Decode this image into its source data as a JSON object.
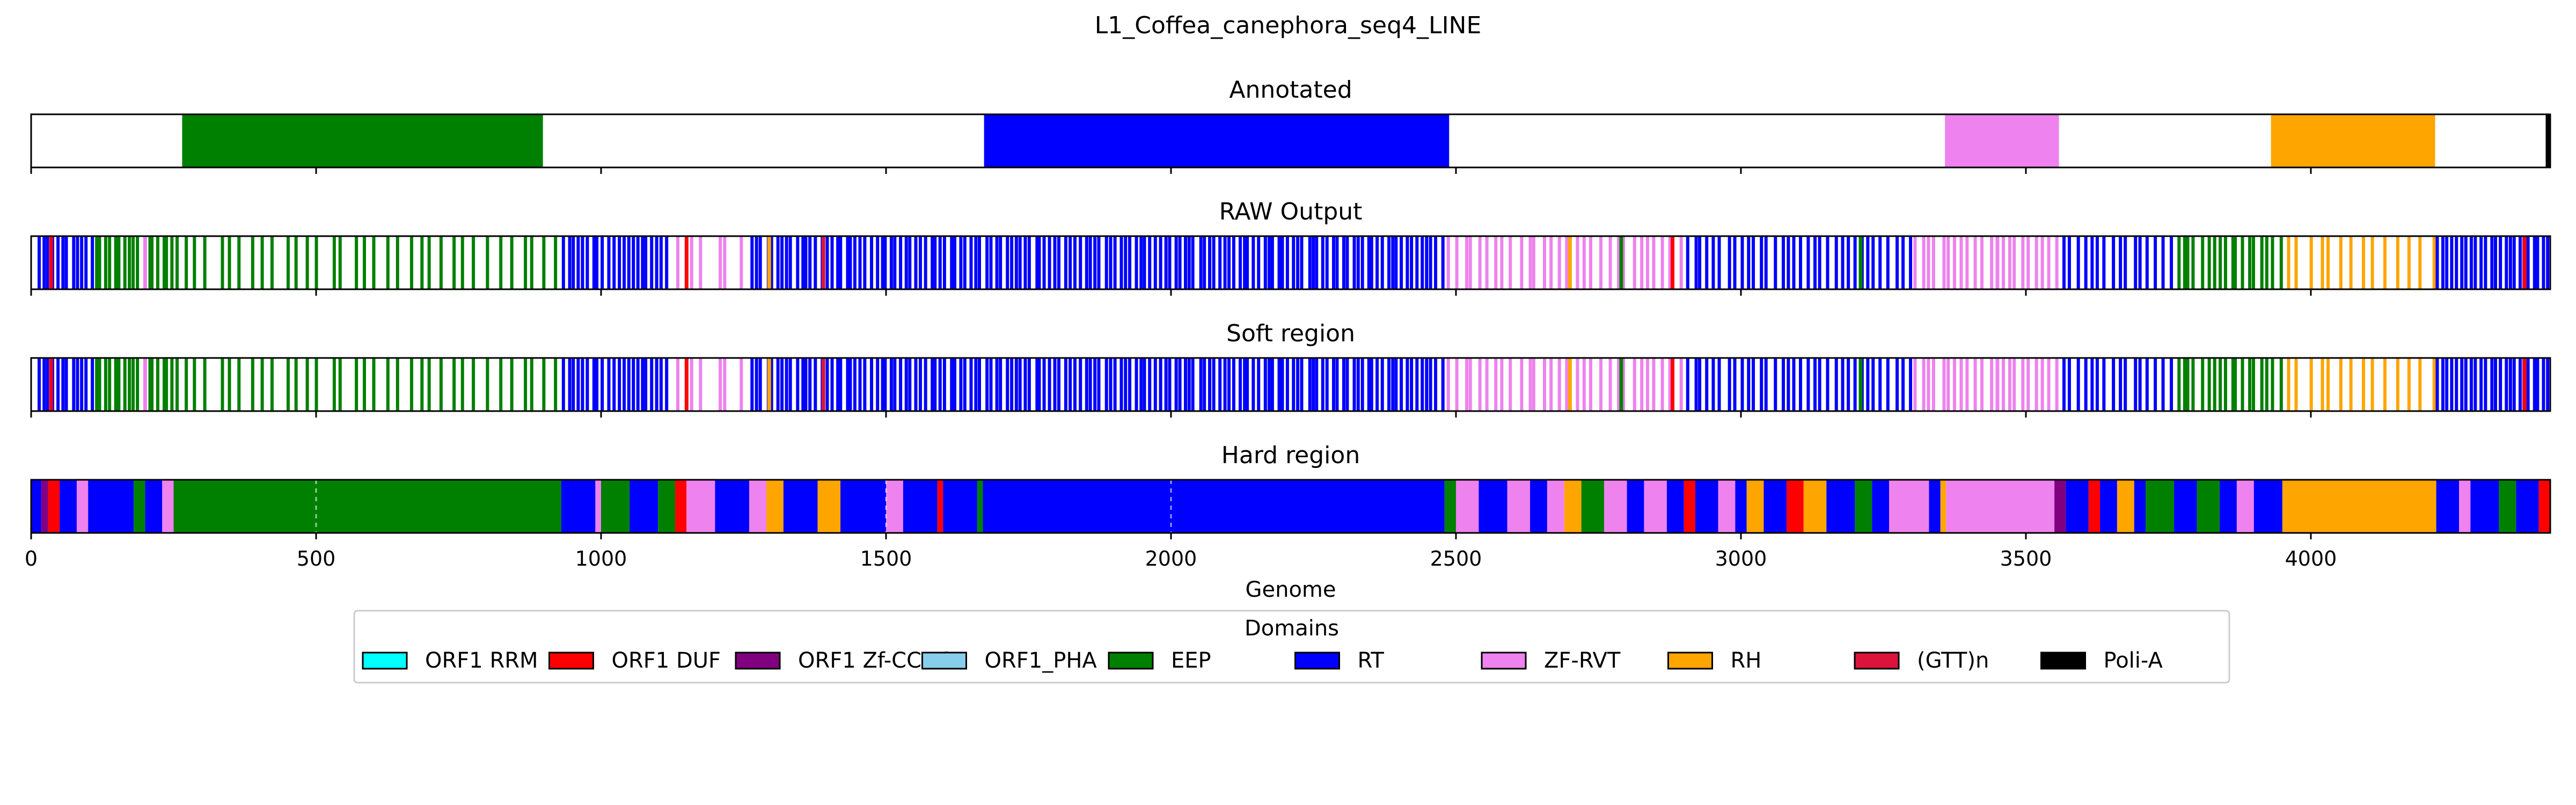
{
  "chart_data": {
    "type": "bar",
    "title": "L1_Coffea_canephora_seq4_LINE",
    "xlabel": "Genome",
    "xlim": [
      0,
      4420
    ],
    "xticks": [
      0,
      500,
      1000,
      1500,
      2000,
      2500,
      3000,
      3500,
      4000
    ],
    "colors": {
      "ORF1 RRM": "#00ffff",
      "ORF1 DUF": "#ff0000",
      "ORF1 Zf-CCHC": "#800080",
      "ORF1_PHA": "#87ceeb",
      "EEP": "#008000",
      "RT": "#0000ff",
      "ZF-RVT": "#ee82ee",
      "RH": "#ffa500",
      "(GTT)n": "#dc143c",
      "Poli-A": "#000000"
    },
    "legend": {
      "title": "Domains",
      "placement": "bottom-center",
      "items": [
        "ORF1 RRM",
        "ORF1 DUF",
        "ORF1 Zf-CCHC",
        "ORF1_PHA",
        "EEP",
        "RT",
        "ZF-RVT",
        "RH",
        "(GTT)n",
        "Poli-A"
      ]
    },
    "panels": [
      {
        "title": "Annotated",
        "style": "blocks",
        "segments": [
          {
            "start": 265,
            "end": 898,
            "domain": "EEP"
          },
          {
            "start": 1672,
            "end": 2488,
            "domain": "RT"
          },
          {
            "start": 3358,
            "end": 3558,
            "domain": "ZF-RVT"
          },
          {
            "start": 3930,
            "end": 4218,
            "domain": "RH"
          },
          {
            "start": 4412,
            "end": 4420,
            "domain": "Poli-A"
          }
        ]
      },
      {
        "title": "RAW Output",
        "style": "lines",
        "segments": [
          {
            "start": 10,
            "end": 110,
            "domain": "RT",
            "n": 12
          },
          {
            "start": 110,
            "end": 260,
            "domain": "EEP",
            "n": 18
          },
          {
            "start": 260,
            "end": 930,
            "domain": "EEP",
            "n": 34
          },
          {
            "start": 930,
            "end": 1120,
            "domain": "RT",
            "n": 22
          },
          {
            "start": 1120,
            "end": 1260,
            "domain": "ZF-RVT",
            "n": 6
          },
          {
            "start": 1260,
            "end": 1680,
            "domain": "RT",
            "n": 48
          },
          {
            "start": 1680,
            "end": 2480,
            "domain": "RT",
            "n": 92
          },
          {
            "start": 2480,
            "end": 2900,
            "domain": "ZF-RVT",
            "n": 30
          },
          {
            "start": 2900,
            "end": 3300,
            "domain": "RT",
            "n": 34
          },
          {
            "start": 3300,
            "end": 3560,
            "domain": "ZF-RVT",
            "n": 22
          },
          {
            "start": 3560,
            "end": 3760,
            "domain": "RT",
            "n": 16
          },
          {
            "start": 3760,
            "end": 3950,
            "domain": "EEP",
            "n": 18
          },
          {
            "start": 3950,
            "end": 4220,
            "domain": "RH",
            "n": 14
          },
          {
            "start": 4220,
            "end": 4420,
            "domain": "RT",
            "n": 24
          }
        ],
        "accents": [
          {
            "pos": 35,
            "domain": "ORF1 DUF"
          },
          {
            "pos": 200,
            "domain": "ZF-RVT"
          },
          {
            "pos": 1150,
            "domain": "ORF1 DUF"
          },
          {
            "pos": 1295,
            "domain": "RH"
          },
          {
            "pos": 1390,
            "domain": "(GTT)n"
          },
          {
            "pos": 2700,
            "domain": "RH"
          },
          {
            "pos": 2790,
            "domain": "EEP"
          },
          {
            "pos": 2880,
            "domain": "ORF1 DUF"
          },
          {
            "pos": 3210,
            "domain": "EEP"
          },
          {
            "pos": 3450,
            "domain": "ZF-RVT"
          },
          {
            "pos": 4375,
            "domain": "ORF1 DUF"
          }
        ]
      },
      {
        "title": "Soft region",
        "style": "lines",
        "segments": [
          {
            "start": 10,
            "end": 110,
            "domain": "RT",
            "n": 12
          },
          {
            "start": 110,
            "end": 260,
            "domain": "EEP",
            "n": 18
          },
          {
            "start": 260,
            "end": 930,
            "domain": "EEP",
            "n": 34
          },
          {
            "start": 930,
            "end": 1120,
            "domain": "RT",
            "n": 22
          },
          {
            "start": 1120,
            "end": 1260,
            "domain": "ZF-RVT",
            "n": 6
          },
          {
            "start": 1260,
            "end": 1680,
            "domain": "RT",
            "n": 48
          },
          {
            "start": 1680,
            "end": 2480,
            "domain": "RT",
            "n": 92
          },
          {
            "start": 2480,
            "end": 2900,
            "domain": "ZF-RVT",
            "n": 30
          },
          {
            "start": 2900,
            "end": 3300,
            "domain": "RT",
            "n": 34
          },
          {
            "start": 3300,
            "end": 3560,
            "domain": "ZF-RVT",
            "n": 22
          },
          {
            "start": 3560,
            "end": 3760,
            "domain": "RT",
            "n": 16
          },
          {
            "start": 3760,
            "end": 3950,
            "domain": "EEP",
            "n": 18
          },
          {
            "start": 3950,
            "end": 4220,
            "domain": "RH",
            "n": 14
          },
          {
            "start": 4220,
            "end": 4420,
            "domain": "RT",
            "n": 24
          }
        ],
        "accents": [
          {
            "pos": 35,
            "domain": "ORF1 DUF"
          },
          {
            "pos": 200,
            "domain": "ZF-RVT"
          },
          {
            "pos": 1150,
            "domain": "ORF1 DUF"
          },
          {
            "pos": 1295,
            "domain": "RH"
          },
          {
            "pos": 1390,
            "domain": "(GTT)n"
          },
          {
            "pos": 2700,
            "domain": "RH"
          },
          {
            "pos": 2790,
            "domain": "EEP"
          },
          {
            "pos": 2880,
            "domain": "ORF1 DUF"
          },
          {
            "pos": 3210,
            "domain": "EEP"
          },
          {
            "pos": 3450,
            "domain": "ZF-RVT"
          },
          {
            "pos": 4375,
            "domain": "ORF1 DUF"
          }
        ]
      },
      {
        "title": "Hard region",
        "style": "blocks",
        "segments": [
          {
            "start": 0,
            "end": 18,
            "domain": "RT"
          },
          {
            "start": 18,
            "end": 30,
            "domain": "ORF1 Zf-CCHC"
          },
          {
            "start": 30,
            "end": 50,
            "domain": "ORF1 DUF"
          },
          {
            "start": 50,
            "end": 80,
            "domain": "RT"
          },
          {
            "start": 80,
            "end": 100,
            "domain": "ZF-RVT"
          },
          {
            "start": 100,
            "end": 180,
            "domain": "RT"
          },
          {
            "start": 180,
            "end": 200,
            "domain": "EEP"
          },
          {
            "start": 200,
            "end": 230,
            "domain": "RT"
          },
          {
            "start": 230,
            "end": 250,
            "domain": "ZF-RVT"
          },
          {
            "start": 250,
            "end": 930,
            "domain": "EEP"
          },
          {
            "start": 930,
            "end": 990,
            "domain": "RT"
          },
          {
            "start": 990,
            "end": 1000,
            "domain": "ZF-RVT"
          },
          {
            "start": 1000,
            "end": 1050,
            "domain": "EEP"
          },
          {
            "start": 1050,
            "end": 1100,
            "domain": "RT"
          },
          {
            "start": 1100,
            "end": 1130,
            "domain": "EEP"
          },
          {
            "start": 1130,
            "end": 1150,
            "domain": "ORF1 DUF"
          },
          {
            "start": 1150,
            "end": 1200,
            "domain": "ZF-RVT"
          },
          {
            "start": 1200,
            "end": 1260,
            "domain": "RT"
          },
          {
            "start": 1260,
            "end": 1290,
            "domain": "ZF-RVT"
          },
          {
            "start": 1290,
            "end": 1320,
            "domain": "RH"
          },
          {
            "start": 1320,
            "end": 1380,
            "domain": "RT"
          },
          {
            "start": 1380,
            "end": 1420,
            "domain": "RH"
          },
          {
            "start": 1420,
            "end": 1500,
            "domain": "RT"
          },
          {
            "start": 1500,
            "end": 1530,
            "domain": "ZF-RVT"
          },
          {
            "start": 1530,
            "end": 1590,
            "domain": "RT"
          },
          {
            "start": 1590,
            "end": 1600,
            "domain": "ORF1 DUF"
          },
          {
            "start": 1600,
            "end": 1660,
            "domain": "RT"
          },
          {
            "start": 1660,
            "end": 1670,
            "domain": "EEP"
          },
          {
            "start": 1670,
            "end": 2480,
            "domain": "RT"
          },
          {
            "start": 2480,
            "end": 2500,
            "domain": "EEP"
          },
          {
            "start": 2500,
            "end": 2540,
            "domain": "ZF-RVT"
          },
          {
            "start": 2540,
            "end": 2590,
            "domain": "RT"
          },
          {
            "start": 2590,
            "end": 2630,
            "domain": "ZF-RVT"
          },
          {
            "start": 2630,
            "end": 2660,
            "domain": "RT"
          },
          {
            "start": 2660,
            "end": 2690,
            "domain": "ZF-RVT"
          },
          {
            "start": 2690,
            "end": 2720,
            "domain": "RH"
          },
          {
            "start": 2720,
            "end": 2760,
            "domain": "EEP"
          },
          {
            "start": 2760,
            "end": 2800,
            "domain": "ZF-RVT"
          },
          {
            "start": 2800,
            "end": 2830,
            "domain": "RT"
          },
          {
            "start": 2830,
            "end": 2870,
            "domain": "ZF-RVT"
          },
          {
            "start": 2870,
            "end": 2900,
            "domain": "RT"
          },
          {
            "start": 2900,
            "end": 2920,
            "domain": "ORF1 DUF"
          },
          {
            "start": 2920,
            "end": 2960,
            "domain": "RT"
          },
          {
            "start": 2960,
            "end": 2990,
            "domain": "ZF-RVT"
          },
          {
            "start": 2990,
            "end": 3010,
            "domain": "RT"
          },
          {
            "start": 3010,
            "end": 3040,
            "domain": "RH"
          },
          {
            "start": 3040,
            "end": 3080,
            "domain": "RT"
          },
          {
            "start": 3080,
            "end": 3110,
            "domain": "ORF1 DUF"
          },
          {
            "start": 3110,
            "end": 3150,
            "domain": "RH"
          },
          {
            "start": 3150,
            "end": 3200,
            "domain": "RT"
          },
          {
            "start": 3200,
            "end": 3230,
            "domain": "EEP"
          },
          {
            "start": 3230,
            "end": 3260,
            "domain": "RT"
          },
          {
            "start": 3260,
            "end": 3330,
            "domain": "ZF-RVT"
          },
          {
            "start": 3330,
            "end": 3350,
            "domain": "RT"
          },
          {
            "start": 3350,
            "end": 3360,
            "domain": "RH"
          },
          {
            "start": 3360,
            "end": 3550,
            "domain": "ZF-RVT"
          },
          {
            "start": 3550,
            "end": 3570,
            "domain": "ORF1 Zf-CCHC"
          },
          {
            "start": 3570,
            "end": 3610,
            "domain": "RT"
          },
          {
            "start": 3610,
            "end": 3630,
            "domain": "ORF1 DUF"
          },
          {
            "start": 3630,
            "end": 3660,
            "domain": "RT"
          },
          {
            "start": 3660,
            "end": 3690,
            "domain": "RH"
          },
          {
            "start": 3690,
            "end": 3710,
            "domain": "RT"
          },
          {
            "start": 3710,
            "end": 3760,
            "domain": "EEP"
          },
          {
            "start": 3760,
            "end": 3800,
            "domain": "RT"
          },
          {
            "start": 3800,
            "end": 3840,
            "domain": "EEP"
          },
          {
            "start": 3840,
            "end": 3870,
            "domain": "RT"
          },
          {
            "start": 3870,
            "end": 3900,
            "domain": "ZF-RVT"
          },
          {
            "start": 3900,
            "end": 3950,
            "domain": "RT"
          },
          {
            "start": 3950,
            "end": 4220,
            "domain": "RH"
          },
          {
            "start": 4220,
            "end": 4260,
            "domain": "RT"
          },
          {
            "start": 4260,
            "end": 4280,
            "domain": "ZF-RVT"
          },
          {
            "start": 4280,
            "end": 4330,
            "domain": "RT"
          },
          {
            "start": 4330,
            "end": 4360,
            "domain": "EEP"
          },
          {
            "start": 4360,
            "end": 4400,
            "domain": "RT"
          },
          {
            "start": 4400,
            "end": 4420,
            "domain": "ORF1 DUF"
          }
        ],
        "dashed_grid": [
          500,
          1500,
          2000
        ]
      }
    ]
  }
}
